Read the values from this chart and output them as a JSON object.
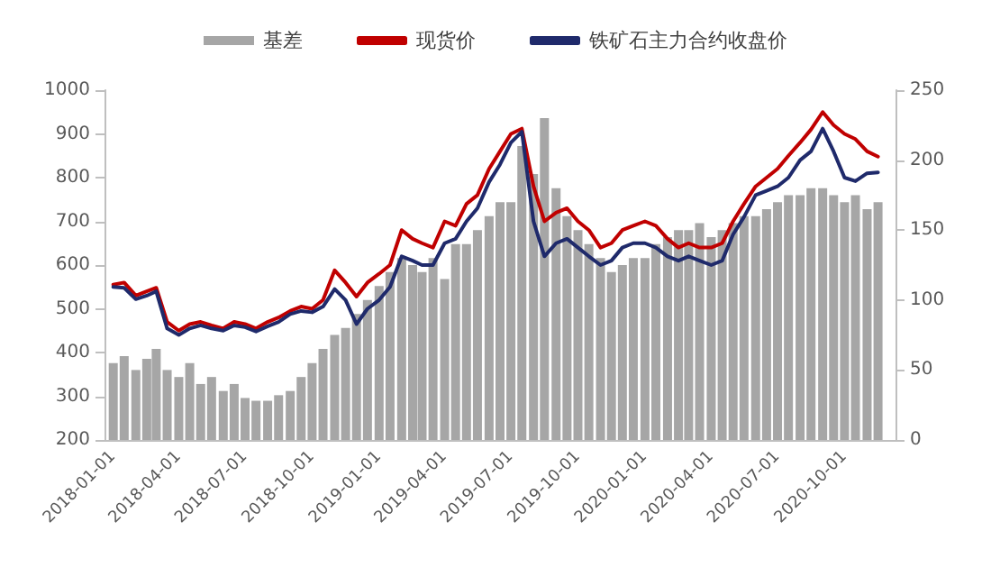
{
  "chart_data": {
    "type": "line",
    "x": [
      "2018-01-01",
      "2018-01-16",
      "2018-02-01",
      "2018-02-16",
      "2018-03-01",
      "2018-03-16",
      "2018-04-01",
      "2018-04-16",
      "2018-05-01",
      "2018-05-16",
      "2018-06-01",
      "2018-06-16",
      "2018-07-01",
      "2018-07-16",
      "2018-08-01",
      "2018-08-16",
      "2018-09-01",
      "2018-09-16",
      "2018-10-01",
      "2018-10-16",
      "2018-11-01",
      "2018-11-16",
      "2018-12-01",
      "2018-12-16",
      "2019-01-01",
      "2019-01-16",
      "2019-02-01",
      "2019-02-16",
      "2019-03-01",
      "2019-03-16",
      "2019-04-01",
      "2019-04-16",
      "2019-05-01",
      "2019-05-16",
      "2019-06-01",
      "2019-06-16",
      "2019-07-01",
      "2019-07-16",
      "2019-08-01",
      "2019-08-16",
      "2019-09-01",
      "2019-09-16",
      "2019-10-01",
      "2019-10-16",
      "2019-11-01",
      "2019-11-16",
      "2019-12-01",
      "2019-12-16",
      "2020-01-01",
      "2020-01-16",
      "2020-02-01",
      "2020-02-16",
      "2020-03-01",
      "2020-03-16",
      "2020-04-01",
      "2020-04-16",
      "2020-05-01",
      "2020-05-16",
      "2020-06-01",
      "2020-06-16",
      "2020-07-01",
      "2020-07-16",
      "2020-08-01",
      "2020-08-16",
      "2020-09-01",
      "2020-09-16",
      "2020-10-01",
      "2020-10-16",
      "2020-11-01",
      "2020-11-16"
    ],
    "series": [
      {
        "name": "基差",
        "type": "bar",
        "axis": "y2",
        "color": "#a6a6a6",
        "values": [
          55,
          60,
          50,
          58,
          65,
          50,
          45,
          55,
          40,
          45,
          35,
          40,
          30,
          28,
          28,
          32,
          35,
          45,
          55,
          65,
          75,
          80,
          90,
          100,
          110,
          120,
          130,
          125,
          120,
          130,
          115,
          140,
          140,
          150,
          160,
          170,
          170,
          210,
          190,
          230,
          180,
          160,
          150,
          140,
          130,
          120,
          125,
          130,
          130,
          140,
          145,
          150,
          150,
          155,
          145,
          150,
          155,
          160,
          160,
          165,
          170,
          175,
          175,
          180,
          180,
          175,
          170,
          175,
          165,
          170
        ]
      },
      {
        "name": "现货价",
        "color": "#c00000",
        "values": [
          555,
          560,
          530,
          540,
          548,
          470,
          450,
          465,
          470,
          462,
          455,
          470,
          465,
          455,
          470,
          480,
          495,
          505,
          500,
          520,
          588,
          560,
          528,
          560,
          580,
          600,
          680,
          660,
          650,
          640,
          700,
          690,
          740,
          760,
          820,
          860,
          900,
          912,
          780,
          700,
          720,
          730,
          700,
          680,
          640,
          650,
          680,
          690,
          700,
          690,
          660,
          640,
          650,
          640,
          640,
          650,
          700,
          740,
          780,
          800,
          820,
          850,
          880,
          910,
          950,
          920,
          900,
          888,
          860,
          848
        ]
      },
      {
        "name": "铁矿石主力合约收盘价",
        "color": "#1f2a6b",
        "values": [
          550,
          548,
          522,
          530,
          540,
          455,
          440,
          455,
          462,
          455,
          450,
          462,
          458,
          448,
          460,
          470,
          488,
          495,
          492,
          505,
          545,
          520,
          465,
          500,
          520,
          550,
          620,
          610,
          600,
          600,
          650,
          660,
          700,
          730,
          790,
          830,
          880,
          905,
          700,
          620,
          650,
          660,
          640,
          620,
          600,
          610,
          640,
          650,
          650,
          640,
          620,
          610,
          620,
          610,
          600,
          610,
          670,
          710,
          760,
          770,
          780,
          800,
          840,
          860,
          912,
          860,
          800,
          792,
          810,
          812
        ]
      }
    ],
    "xlim": [
      "2017-12-20",
      "2020-12-10"
    ],
    "xticks": [
      "2018-01-01",
      "2018-04-01",
      "2018-07-01",
      "2018-10-01",
      "2019-01-01",
      "2019-04-01",
      "2019-07-01",
      "2019-10-01",
      "2020-01-01",
      "2020-04-01",
      "2020-07-01",
      "2020-10-01"
    ],
    "ylim": [
      200,
      1000
    ],
    "yticks": [
      200,
      300,
      400,
      500,
      600,
      700,
      800,
      900,
      1000
    ],
    "y2lim": [
      0,
      250
    ],
    "y2ticks": [
      0,
      50,
      100,
      150,
      200,
      250
    ],
    "legend": "top",
    "grid": false,
    "marker": "none",
    "line_style": "solid"
  }
}
